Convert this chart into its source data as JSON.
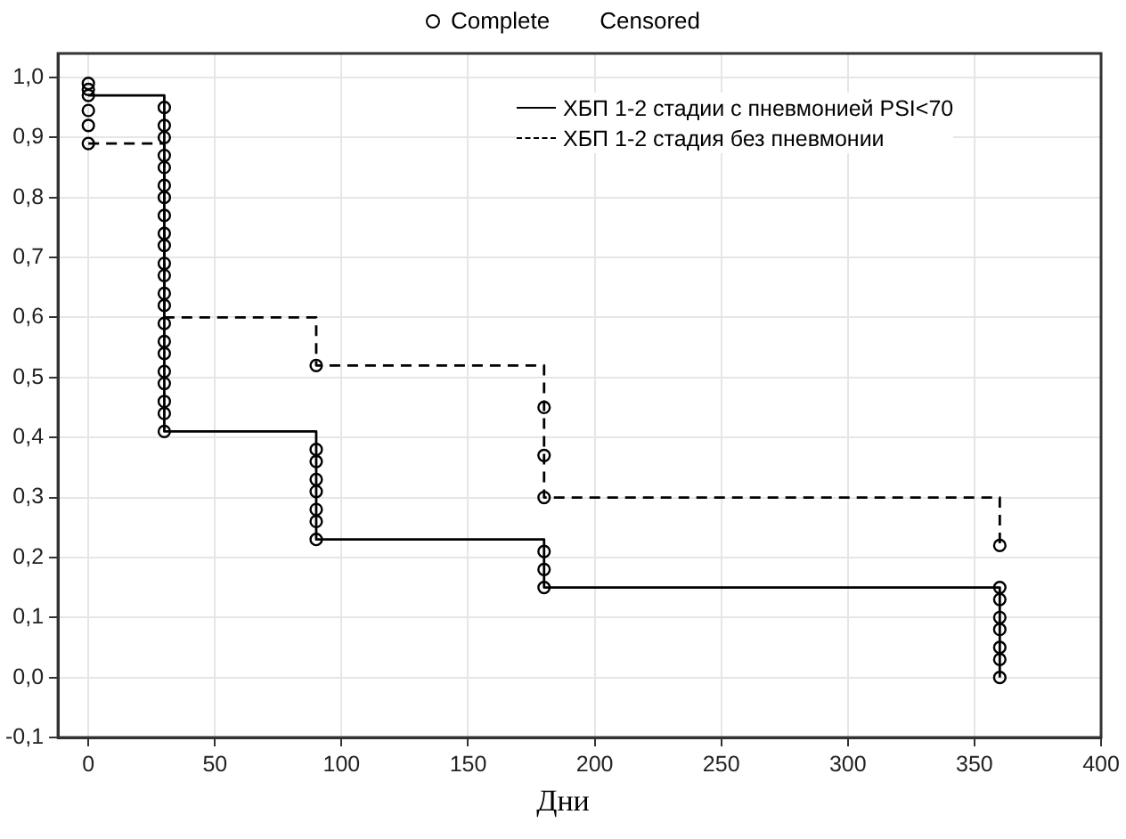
{
  "chart_data": {
    "type": "step",
    "xlabel": "Дни",
    "xlim": [
      -12,
      400
    ],
    "xticks": [
      0,
      50,
      100,
      150,
      200,
      250,
      300,
      350,
      400
    ],
    "ylim": [
      -0.1,
      1.04
    ],
    "yticks": [
      {
        "value": -0.1,
        "label": "-0,1"
      },
      {
        "value": 0,
        "label": "0,0"
      },
      {
        "value": 0.1,
        "label": "0,1"
      },
      {
        "value": 0.2,
        "label": "0,2"
      },
      {
        "value": 0.3,
        "label": "0,3"
      },
      {
        "value": 0.4,
        "label": "0,4"
      },
      {
        "value": 0.5,
        "label": "0,5"
      },
      {
        "value": 0.6,
        "label": "0,6"
      },
      {
        "value": 0.7,
        "label": "0,7"
      },
      {
        "value": 0.8,
        "label": "0,8"
      },
      {
        "value": 0.9,
        "label": "0,9"
      },
      {
        "value": 1,
        "label": "1,0"
      }
    ],
    "grid": true,
    "legend": "top right",
    "annotations": [
      "Censored"
    ],
    "series": [
      {
        "name": "ХБП 1-2 стадии с пневмонией PSI<70",
        "color": "#000000",
        "line_style": "solid",
        "x": [
          0,
          30,
          90,
          180,
          360
        ],
        "values": [
          0.97,
          0.41,
          0.23,
          0.15,
          0
        ]
      },
      {
        "name": "ХБП 1-2 стадия без пневмонии",
        "color": "#000000",
        "line_style": "dashed",
        "x": [
          0,
          30,
          90,
          180,
          360
        ],
        "values": [
          0.89,
          0.6,
          0.52,
          0.3,
          0.22
        ]
      },
      {
        "name": "Complete",
        "type": "scatter",
        "color": "#000000",
        "marker": "circle",
        "x": [
          0,
          0,
          0,
          0,
          0,
          0,
          30,
          30,
          30,
          30,
          30,
          30,
          30,
          30,
          30,
          30,
          30,
          30,
          30,
          30,
          30,
          30,
          30,
          30,
          30,
          30,
          30,
          30,
          90,
          90,
          90,
          90,
          90,
          90,
          90,
          90,
          180,
          180,
          180,
          180,
          180,
          180,
          360,
          360,
          360,
          360,
          360,
          360,
          360,
          360
        ],
        "values": [
          0.99,
          0.98,
          0.97,
          0.945,
          0.92,
          0.89,
          0.95,
          0.92,
          0.9,
          0.87,
          0.85,
          0.82,
          0.8,
          0.77,
          0.74,
          0.72,
          0.69,
          0.67,
          0.64,
          0.62,
          0.59,
          0.56,
          0.54,
          0.51,
          0.49,
          0.46,
          0.44,
          0.41,
          0.52,
          0.38,
          0.36,
          0.33,
          0.31,
          0.28,
          0.26,
          0.23,
          0.45,
          0.37,
          0.3,
          0.21,
          0.18,
          0.15,
          0.22,
          0.15,
          0.13,
          0.1,
          0.08,
          0.05,
          0.03,
          0
        ]
      }
    ]
  }
}
